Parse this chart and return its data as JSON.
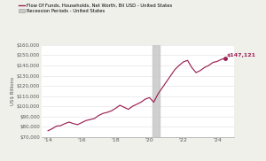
{
  "title": "",
  "ylabel": "US$ Billions",
  "line_color": "#9b2155",
  "recession_color": "#c8c8c8",
  "recession_start": 2020.17,
  "recession_end": 2020.58,
  "annotation_label": "$147,121",
  "annotation_color": "#9b2155",
  "legend_line_label": "Flow Of Funds, Households, Net Worth, Bil USD - United States",
  "legend_rect_label": "Recession Periods - United States",
  "ylim_min": 70000,
  "ylim_max": 160000,
  "yticks": [
    70000,
    80000,
    90000,
    100000,
    110000,
    120000,
    130000,
    140000,
    150000,
    160000
  ],
  "ytick_labels": [
    "$70,000",
    "$80,000",
    "$90,000",
    "$100,000",
    "$110,000",
    "$120,000",
    "$130,000",
    "$140,000",
    "$150,000",
    "$160,000"
  ],
  "xticks": [
    2014,
    2016,
    2018,
    2020,
    2022,
    2024
  ],
  "xtick_labels": [
    "'14",
    "'16",
    "'18",
    "'20",
    "'22",
    "'24"
  ],
  "data_x": [
    2014.0,
    2014.25,
    2014.5,
    2014.75,
    2015.0,
    2015.25,
    2015.5,
    2015.75,
    2016.0,
    2016.25,
    2016.5,
    2016.75,
    2017.0,
    2017.25,
    2017.5,
    2017.75,
    2018.0,
    2018.25,
    2018.5,
    2018.75,
    2019.0,
    2019.25,
    2019.5,
    2019.75,
    2020.0,
    2020.25,
    2020.5,
    2020.75,
    2021.0,
    2021.25,
    2021.5,
    2021.75,
    2022.0,
    2022.25,
    2022.5,
    2022.75,
    2023.0,
    2023.25,
    2023.5,
    2023.75,
    2024.0,
    2024.25,
    2024.5
  ],
  "data_y": [
    76000,
    78000,
    80500,
    81000,
    83000,
    84500,
    83000,
    82000,
    84000,
    86000,
    87000,
    88000,
    91000,
    93000,
    94000,
    95500,
    98000,
    101000,
    99000,
    97000,
    100000,
    102000,
    104000,
    107000,
    108500,
    104000,
    112000,
    118000,
    124000,
    130000,
    136000,
    140000,
    143500,
    145000,
    138000,
    133000,
    135000,
    138000,
    140000,
    143000,
    144000,
    146000,
    147121
  ],
  "bg_color": "#f0f0eb",
  "plot_bg_color": "#ffffff"
}
